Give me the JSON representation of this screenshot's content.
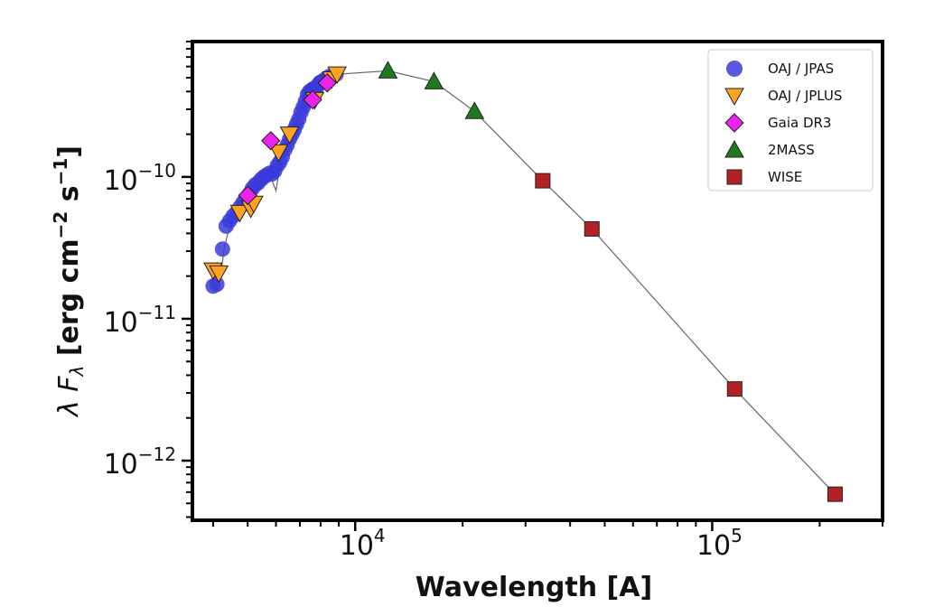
{
  "chart_data": {
    "type": "scatter",
    "xlabel": "Wavelength [A]",
    "ylabel_parts": [
      "λ ",
      "F",
      "λ",
      " [erg cm",
      "−2",
      " s",
      "−1",
      "]"
    ],
    "x_scale": "log",
    "y_scale": "log",
    "xlim": [
      3500,
      300000
    ],
    "ylim": [
      3.8e-13,
      9e-10
    ],
    "x_ticks": [
      {
        "value": 10000,
        "base": "10",
        "exp": "4"
      },
      {
        "value": 100000,
        "base": "10",
        "exp": "5"
      }
    ],
    "y_ticks": [
      {
        "value": 1e-12,
        "base": "10",
        "exp": "−12"
      },
      {
        "value": 1e-11,
        "base": "10",
        "exp": "−11"
      },
      {
        "value": 1e-10,
        "base": "10",
        "exp": "−10"
      }
    ],
    "grid": false,
    "legend_position": "top-right",
    "model_curve": {
      "color": "#666666",
      "points": [
        [
          4000,
          1.8e-11
        ],
        [
          4100,
          2.5e-11
        ],
        [
          4200,
          2e-11
        ],
        [
          4300,
          3.2e-11
        ],
        [
          4400,
          4e-11
        ],
        [
          4600,
          5.2e-11
        ],
        [
          4800,
          6.5e-11
        ],
        [
          5000,
          7.5e-11
        ],
        [
          5200,
          8.8e-11
        ],
        [
          5400,
          9.5e-11
        ],
        [
          5600,
          1.05e-10
        ],
        [
          5800,
          1e-10
        ],
        [
          6000,
          8e-11
        ],
        [
          6200,
          1.3e-10
        ],
        [
          6400,
          1.6e-10
        ],
        [
          6600,
          2e-10
        ],
        [
          6800,
          2.4e-10
        ],
        [
          7000,
          2.9e-10
        ],
        [
          7200,
          3.5e-10
        ],
        [
          7500,
          4e-10
        ],
        [
          8000,
          4.6e-10
        ],
        [
          8500,
          5.1e-10
        ],
        [
          9000,
          5.3e-10
        ],
        [
          12350,
          5.6e-10
        ],
        [
          16620,
          4.7e-10
        ],
        [
          21590,
          2.9e-10
        ],
        [
          33526,
          9.4e-11
        ],
        [
          46030,
          4.3e-11
        ],
        [
          115608,
          3.2e-12
        ],
        [
          220883,
          5.8e-13
        ]
      ]
    },
    "series": [
      {
        "name": "OAJ / JPAS",
        "marker": "circle",
        "color": "#3b3bdc",
        "points": [
          [
            4000,
            1.7e-11
          ],
          [
            4100,
            1.75e-11
          ],
          [
            4250,
            3.1e-11
          ],
          [
            4350,
            4.5e-11
          ],
          [
            4450,
            4.9e-11
          ],
          [
            4550,
            5.3e-11
          ],
          [
            4650,
            5.6e-11
          ],
          [
            4750,
            6.1e-11
          ],
          [
            4850,
            6.6e-11
          ],
          [
            4950,
            7.1e-11
          ],
          [
            5050,
            7.6e-11
          ],
          [
            5150,
            8.3e-11
          ],
          [
            5250,
            8.8e-11
          ],
          [
            5350,
            9.1e-11
          ],
          [
            5450,
            9.6e-11
          ],
          [
            5550,
            1e-10
          ],
          [
            5650,
            1.03e-10
          ],
          [
            5750,
            1.06e-10
          ],
          [
            5850,
            1.05e-10
          ],
          [
            5950,
            1.1e-10
          ],
          [
            6050,
            1.2e-10
          ],
          [
            6150,
            1.27e-10
          ],
          [
            6250,
            1.38e-10
          ],
          [
            6350,
            1.55e-10
          ],
          [
            6450,
            1.68e-10
          ],
          [
            6550,
            1.85e-10
          ],
          [
            6650,
            2e-10
          ],
          [
            6750,
            2.15e-10
          ],
          [
            6850,
            2.35e-10
          ],
          [
            6950,
            2.55e-10
          ],
          [
            7050,
            2.85e-10
          ],
          [
            7150,
            3.1e-10
          ],
          [
            7250,
            3.4e-10
          ],
          [
            7350,
            3.8e-10
          ],
          [
            7450,
            4e-10
          ],
          [
            7550,
            4.1e-10
          ],
          [
            7650,
            4.2e-10
          ],
          [
            7750,
            4.1e-10
          ],
          [
            7850,
            4.4e-10
          ],
          [
            7950,
            4.6e-10
          ],
          [
            8050,
            4.7e-10
          ],
          [
            8250,
            4.9e-10
          ],
          [
            8450,
            5.1e-10
          ],
          [
            8650,
            5.2e-10
          ],
          [
            8850,
            5.3e-10
          ]
        ]
      },
      {
        "name": "OAJ / JPLUS",
        "marker": "triangle-down",
        "color": "#ffa21f",
        "points": [
          [
            4000,
            2.2e-11
          ],
          [
            4150,
            2.1e-11
          ],
          [
            4750,
            5.6e-11
          ],
          [
            5100,
            6e-11
          ],
          [
            5200,
            6.5e-11
          ],
          [
            6100,
            1.5e-10
          ],
          [
            6550,
            2e-10
          ],
          [
            7700,
            3.5e-10
          ],
          [
            8600,
            4.9e-10
          ],
          [
            8900,
            5.3e-10
          ]
        ]
      },
      {
        "name": "Gaia DR3",
        "marker": "diamond",
        "color": "#ee22ee",
        "points": [
          [
            5000,
            7.4e-11
          ],
          [
            5800,
            1.8e-10
          ],
          [
            7600,
            3.5e-10
          ],
          [
            8350,
            4.6e-10
          ]
        ]
      },
      {
        "name": "2MASS",
        "marker": "triangle-up",
        "color": "#1f7a1f",
        "points": [
          [
            12350,
            5.6e-10
          ],
          [
            16620,
            4.7e-10
          ],
          [
            21590,
            2.9e-10
          ]
        ]
      },
      {
        "name": "WISE",
        "marker": "square",
        "color": "#b22222",
        "points": [
          [
            33526,
            9.4e-11
          ],
          [
            46030,
            4.3e-11
          ],
          [
            115608,
            3.2e-12
          ],
          [
            220883,
            5.8e-13
          ]
        ]
      }
    ]
  }
}
